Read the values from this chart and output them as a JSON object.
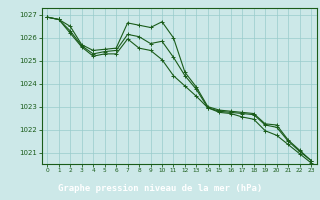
{
  "title": "Graphe pression niveau de la mer (hPa)",
  "background_color": "#cce8e8",
  "label_bg_color": "#2d7a2d",
  "grid_color": "#99cccc",
  "line_color": "#1a5c1a",
  "xlim": [
    -0.5,
    23.5
  ],
  "ylim": [
    1020.5,
    1027.3
  ],
  "yticks": [
    1021,
    1022,
    1023,
    1024,
    1025,
    1026,
    1027
  ],
  "xticks": [
    0,
    1,
    2,
    3,
    4,
    5,
    6,
    7,
    8,
    9,
    10,
    11,
    12,
    13,
    14,
    15,
    16,
    17,
    18,
    19,
    20,
    21,
    22,
    23
  ],
  "series": [
    {
      "x": [
        0,
        1,
        2,
        3,
        4,
        5,
        6,
        7,
        8,
        9,
        10,
        11,
        12,
        13,
        14,
        15,
        16,
        17,
        18,
        19,
        20,
        21,
        22,
        23
      ],
      "y": [
        1026.9,
        1026.8,
        1026.5,
        1025.7,
        1025.45,
        1025.5,
        1025.55,
        1026.65,
        1026.55,
        1026.45,
        1026.7,
        1026.0,
        1024.5,
        1023.85,
        1023.0,
        1022.85,
        1022.8,
        1022.75,
        1022.7,
        1022.25,
        1022.2,
        1021.55,
        1021.1,
        1020.65
      ]
    },
    {
      "x": [
        0,
        1,
        2,
        3,
        4,
        5,
        6,
        7,
        8,
        9,
        10,
        11,
        12,
        13,
        14,
        15,
        16,
        17,
        18,
        19,
        20,
        21,
        22,
        23
      ],
      "y": [
        1026.9,
        1026.8,
        1026.3,
        1025.65,
        1025.3,
        1025.4,
        1025.45,
        1026.15,
        1026.05,
        1025.75,
        1025.85,
        1025.15,
        1024.35,
        1023.75,
        1022.95,
        1022.8,
        1022.75,
        1022.7,
        1022.65,
        1022.2,
        1022.1,
        1021.5,
        1021.05,
        1020.65
      ]
    },
    {
      "x": [
        0,
        1,
        2,
        3,
        4,
        5,
        6,
        7,
        8,
        9,
        10,
        11,
        12,
        13,
        14,
        15,
        16,
        17,
        18,
        19,
        20,
        21,
        22,
        23
      ],
      "y": [
        1026.9,
        1026.8,
        1026.2,
        1025.6,
        1025.2,
        1025.3,
        1025.3,
        1025.95,
        1025.55,
        1025.45,
        1025.05,
        1024.35,
        1023.9,
        1023.45,
        1022.95,
        1022.75,
        1022.7,
        1022.55,
        1022.45,
        1021.95,
        1021.75,
        1021.35,
        1020.95,
        1020.55
      ]
    }
  ]
}
